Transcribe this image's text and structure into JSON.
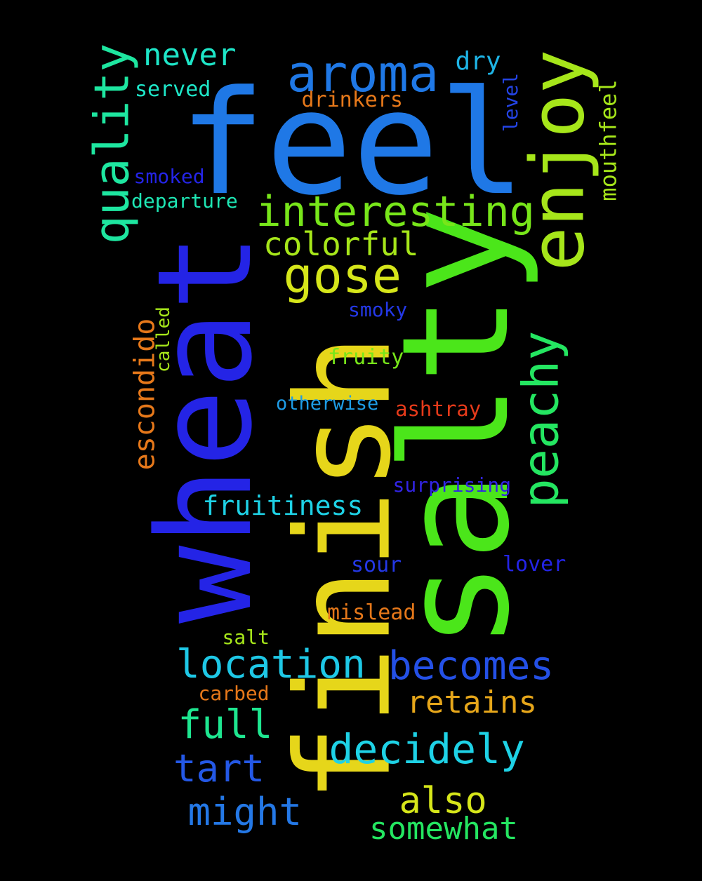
{
  "words": [
    {
      "text": "feel",
      "color": "#1f78e6"
    },
    {
      "text": "salty",
      "color": "#4be61a"
    },
    {
      "text": "finish",
      "color": "#e6d61a"
    },
    {
      "text": "wheat",
      "color": "#2424e6"
    },
    {
      "text": "enjoy",
      "color": "#a6e61a"
    },
    {
      "text": "aroma",
      "color": "#1f78e6"
    },
    {
      "text": "quality",
      "color": "#1ee6a0"
    },
    {
      "text": "interesting",
      "color": "#78e61a"
    },
    {
      "text": "gose",
      "color": "#d6e61a"
    },
    {
      "text": "peachy",
      "color": "#24e661"
    },
    {
      "text": "never",
      "color": "#1ee6c8"
    },
    {
      "text": "colorful",
      "color": "#a6e61a"
    },
    {
      "text": "escondido",
      "color": "#e6781a"
    },
    {
      "text": "becomes",
      "color": "#2450e6"
    },
    {
      "text": "location",
      "color": "#1ec8e6"
    },
    {
      "text": "decidely",
      "color": "#1ed2e6"
    },
    {
      "text": "retains",
      "color": "#e6a61a"
    },
    {
      "text": "full",
      "color": "#1ee690"
    },
    {
      "text": "tart",
      "color": "#2458e6"
    },
    {
      "text": "also",
      "color": "#d6e61a"
    },
    {
      "text": "might",
      "color": "#2478e6"
    },
    {
      "text": "somewhat",
      "color": "#24e661"
    },
    {
      "text": "fruitiness",
      "color": "#1ed2e6"
    },
    {
      "text": "dry",
      "color": "#1eb4e6"
    },
    {
      "text": "mouthfeel",
      "color": "#a6e61a"
    },
    {
      "text": "drinkers",
      "color": "#e6781a"
    },
    {
      "text": "served",
      "color": "#1ee6c8"
    },
    {
      "text": "level",
      "color": "#2444e6"
    },
    {
      "text": "smoked",
      "color": "#2424e6"
    },
    {
      "text": "departure",
      "color": "#1ee6b4"
    },
    {
      "text": "smoky",
      "color": "#2438e6"
    },
    {
      "text": "fruity",
      "color": "#78e61a"
    },
    {
      "text": "called",
      "color": "#a6e61a"
    },
    {
      "text": "otherwise",
      "color": "#1e9ce6"
    },
    {
      "text": "ashtray",
      "color": "#e63a1a"
    },
    {
      "text": "surprising",
      "color": "#3224e6"
    },
    {
      "text": "sour",
      "color": "#2438e6"
    },
    {
      "text": "lover",
      "color": "#2424e6"
    },
    {
      "text": "mislead",
      "color": "#e6781a"
    },
    {
      "text": "salt",
      "color": "#a6e61a"
    },
    {
      "text": "carbed",
      "color": "#e6781a"
    }
  ]
}
